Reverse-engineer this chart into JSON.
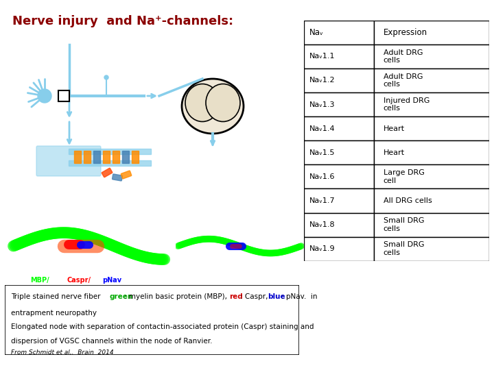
{
  "title": "Nerve injury  and Na⁺-channels:",
  "title_color": "#8B0000",
  "title_fontsize": 13,
  "bg_color": "#ffffff",
  "table_header": [
    "Naᵥ",
    "Expression"
  ],
  "table_rows": [
    [
      "Naᵥ1.1",
      "Adult DRG\ncells"
    ],
    [
      "Naᵥ1.2",
      "Adult DRG\ncells"
    ],
    [
      "Naᵥ1.3",
      "Injured DRG\ncells"
    ],
    [
      "Naᵥ1.4",
      "Heart"
    ],
    [
      "Naᵥ1.5",
      "Heart"
    ],
    [
      "Naᵥ1.6",
      "Large DRG\ncell"
    ],
    [
      "Naᵥ1.7",
      "All DRG cells"
    ],
    [
      "Naᵥ1.8",
      "Small DRG\ncells"
    ],
    [
      "Naᵥ1.9",
      "Small DRG\ncells"
    ]
  ],
  "caption_citation": "From Schmidt et al,.  Brain  2014",
  "caption_fontsize": 7.5,
  "caption_citation_fontsize": 6.5
}
